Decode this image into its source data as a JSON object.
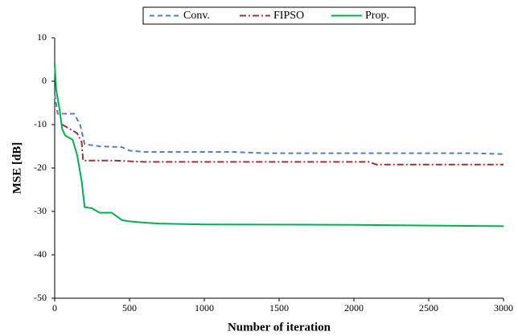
{
  "chart_data": {
    "type": "line",
    "xlabel": "Number of iteration",
    "ylabel": "MSE [dB]",
    "xlim": [
      0,
      3000
    ],
    "ylim": [
      -50,
      10
    ],
    "xticks": [
      0,
      500,
      1000,
      1500,
      2000,
      2500,
      3000
    ],
    "yticks": [
      -50,
      -40,
      -30,
      -20,
      -10,
      0,
      10
    ],
    "grid": false,
    "legend": "top",
    "series": [
      {
        "name": "Conv.",
        "color": "#4f81bd",
        "style": "dashed",
        "x": [
          0,
          20,
          130,
          170,
          200,
          300,
          450,
          500,
          600,
          1200,
          1400,
          2800,
          3000
        ],
        "values": [
          -3,
          -7.5,
          -7.5,
          -10,
          -14.5,
          -15,
          -15.2,
          -16,
          -16.3,
          -16.3,
          -16.6,
          -16.6,
          -16.8
        ]
      },
      {
        "name": "FIPSO",
        "color": "#953735",
        "style": "dashdot",
        "x": [
          50,
          100,
          150,
          180,
          190,
          400,
          600,
          2100,
          2150,
          3000
        ],
        "values": [
          -10,
          -11,
          -12,
          -14,
          -18.3,
          -18.3,
          -18.6,
          -18.6,
          -19.2,
          -19.2
        ]
      },
      {
        "name": "Prop.",
        "color": "#00b050",
        "style": "solid",
        "x": [
          0,
          10,
          30,
          50,
          70,
          120,
          150,
          180,
          200,
          250,
          300,
          380,
          450,
          500,
          600,
          700,
          1000,
          2000,
          3000
        ],
        "values": [
          4,
          -2,
          -6,
          -11,
          -12.5,
          -13.5,
          -17,
          -23,
          -29,
          -29.3,
          -30.3,
          -30.3,
          -32,
          -32.3,
          -32.6,
          -32.8,
          -33,
          -33.1,
          -33.4
        ]
      }
    ]
  }
}
